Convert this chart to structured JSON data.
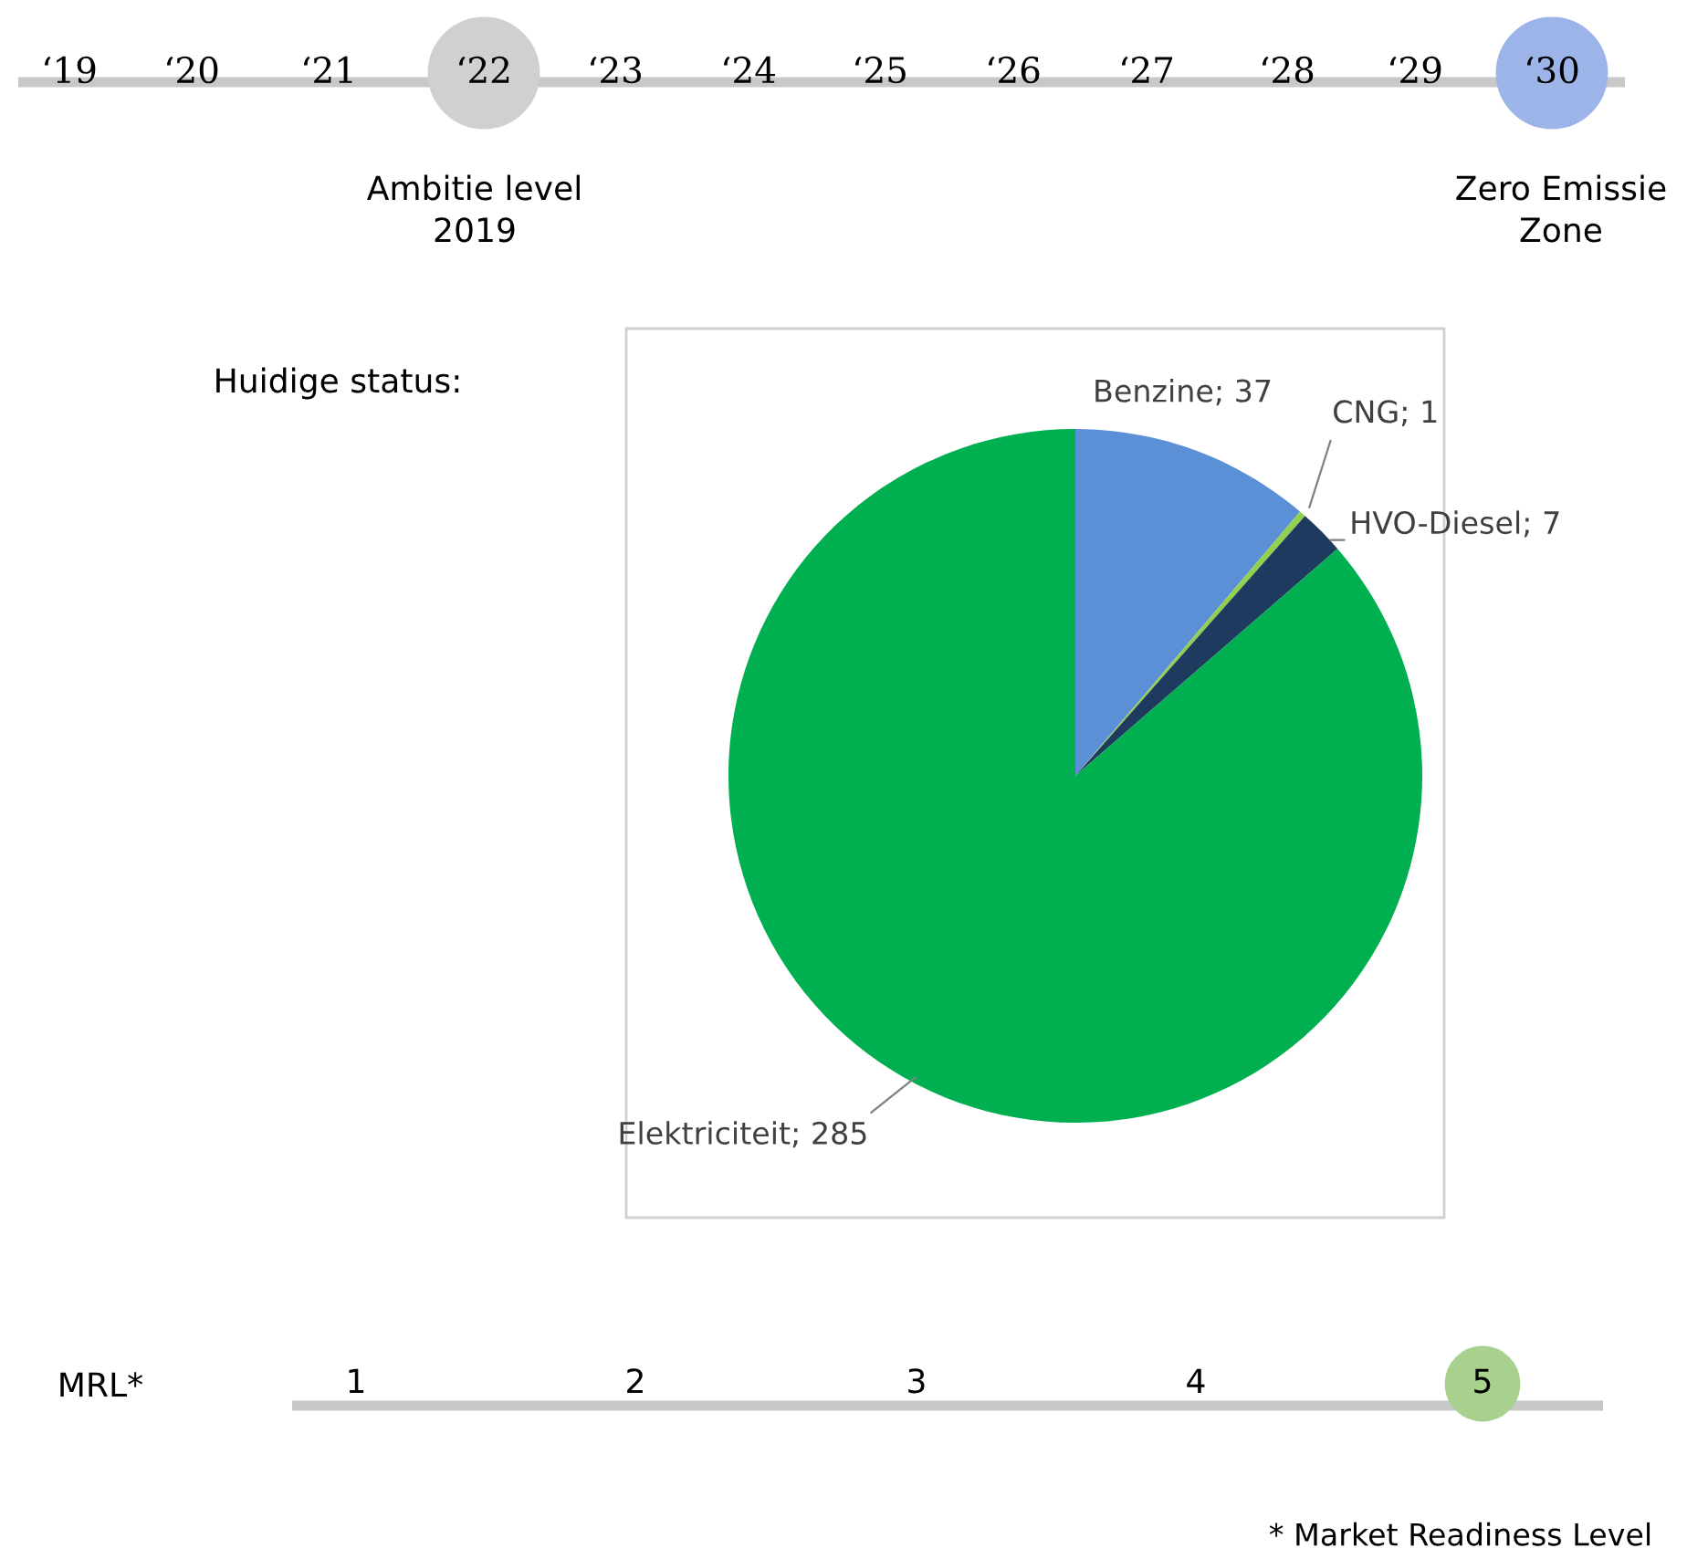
{
  "chart_data": {
    "type": "pie",
    "categories": [
      "Benzine",
      "CNG",
      "HVO-Diesel",
      "Elektriciteit"
    ],
    "values": [
      37,
      1,
      7,
      285
    ],
    "colors": [
      "#5b8fd6",
      "#92d050",
      "#1f3a5f",
      "#00b050"
    ],
    "data_labels": true,
    "value_labels": [
      "; 37",
      "; 1",
      "; 7",
      "; 285"
    ],
    "annotations": [
      "‘19",
      "‘20",
      "‘21",
      "‘22",
      "‘23",
      "‘24",
      "‘25",
      "‘26",
      "‘27",
      "‘28",
      "‘29",
      "‘30",
      "Ambitie level\n2019",
      "Zero Emissie\nZone",
      "Huidige status:",
      "MRL*",
      "1",
      "2",
      "3",
      "4",
      "5",
      "* Market Readiness Level"
    ]
  }
}
